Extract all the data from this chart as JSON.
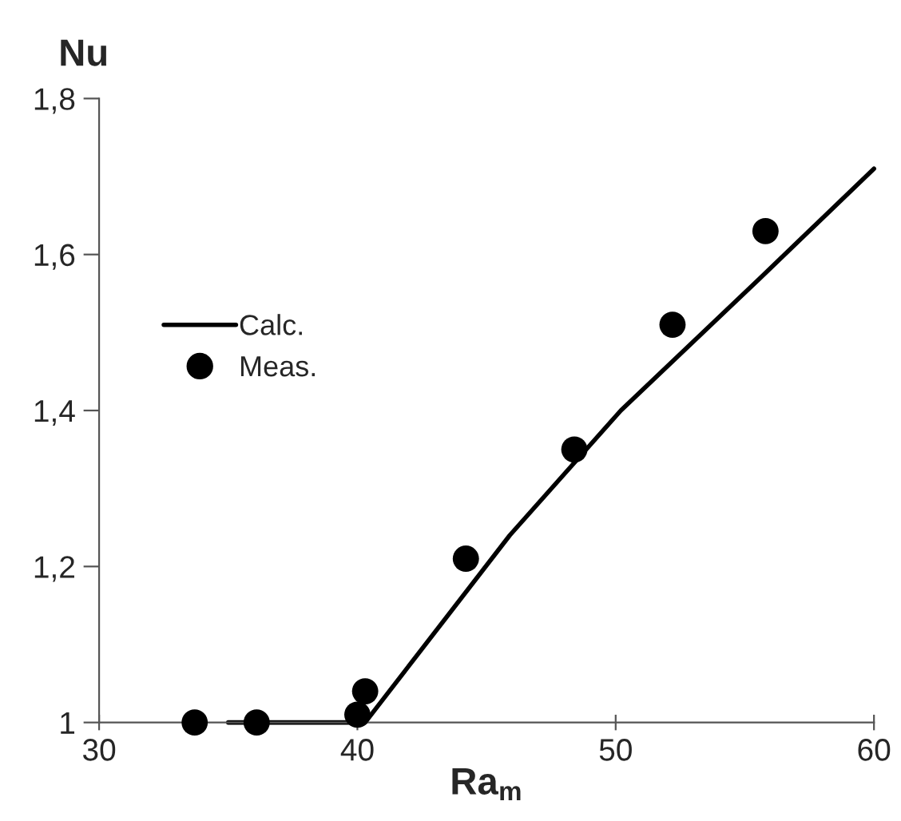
{
  "chart_data": {
    "type": "scatter",
    "xlabel": "Ra$_{m}$",
    "ylabel": "Nu",
    "xlim": [
      30,
      60
    ],
    "xticks": [
      30,
      40,
      50,
      60
    ],
    "ylim": [
      1,
      1.8
    ],
    "yticks": [
      1,
      {
        "value": 1.2,
        "label": "1,2"
      },
      {
        "value": 1.4,
        "label": "1,4"
      },
      {
        "value": 1.6,
        "label": "1,6"
      },
      {
        "value": 1.8,
        "label": "1,8"
      }
    ],
    "series": [
      {
        "name": "Calc.",
        "type": "line",
        "color": "#000000",
        "marker": "none",
        "line_style": "solid",
        "x": [
          35.0,
          40.3,
          45.9,
          50.2,
          55.6,
          60
        ],
        "values": [
          1.0,
          1.0,
          1.24,
          1.4,
          1.57,
          1.71
        ]
      },
      {
        "name": "Meas.",
        "color": "#000000",
        "marker": "circle",
        "x": [
          33.7,
          36.1,
          40.0,
          40.3,
          44.2,
          48.4,
          52.2,
          55.8
        ],
        "values": [
          1.0,
          1.0,
          1.01,
          1.04,
          1.21,
          1.35,
          1.51,
          1.63
        ]
      }
    ],
    "legend": "left",
    "grid": false
  }
}
